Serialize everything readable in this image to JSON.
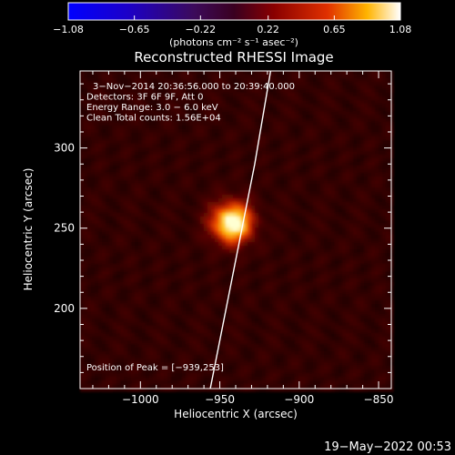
{
  "chart_data": {
    "type": "heatmap",
    "title": "Reconstructed RHESSI Image",
    "xlabel": "Heliocentric X (arcsec)",
    "ylabel": "Heliocentric Y (arcsec)",
    "xlim": [
      -1038,
      -842
    ],
    "ylim": [
      150,
      348
    ],
    "xticks": [
      -1000,
      -950,
      -900,
      -850
    ],
    "xtick_labels": [
      "−1000",
      "−950",
      "−900",
      "−850"
    ],
    "yticks": [
      200,
      250,
      300
    ],
    "ytick_labels": [
      "200",
      "250",
      "300"
    ],
    "colorbar": {
      "min": -1.08,
      "max": 1.08,
      "ticks": [
        -1.08,
        -0.65,
        -0.22,
        0.22,
        0.65,
        1.08
      ],
      "tick_labels": [
        "−1.08",
        "−0.65",
        "−0.22",
        "0.22",
        "0.65",
        "1.08"
      ],
      "label": "(photons cm⁻² s⁻¹ asec⁻²)",
      "colormap": "Red Temperature"
    },
    "info_lines": [
      "3−Nov−2014 20:36:56.000 to 20:39:40.000",
      "Detectors: 3F 6F 9F, Att 0",
      "Energy Range: 3.0 − 6.0 keV",
      "Clean     Total counts: 1.56E+04"
    ],
    "peak": {
      "x": -939,
      "y": 253,
      "label": "Position of Peak = [−939,253]"
    },
    "limb": [
      [
        -956,
        150
      ],
      [
        -948,
        190
      ],
      [
        -938,
        240
      ],
      [
        -928,
        290
      ],
      [
        -918,
        348
      ]
    ]
  },
  "footer": {
    "date": "19−May−2022 00:53"
  },
  "colors": {
    "background": "#000000",
    "foreground": "#ffffff",
    "limb": "#ffffff"
  }
}
